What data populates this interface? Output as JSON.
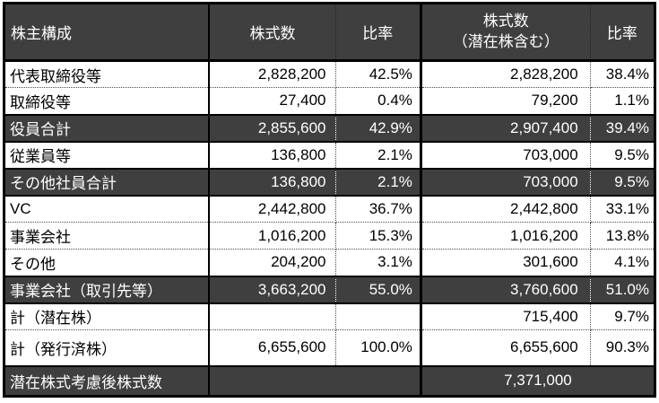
{
  "colors": {
    "emphasis_fill": "#3f3f3f",
    "emphasis_text": "#ffffff",
    "border": "#000000",
    "row_background": "#ffffff"
  },
  "header": {
    "col1": "株主構成",
    "col2": "株式数",
    "col3": "比率",
    "col4_line1": "株式数",
    "col4_line2": "（潜在株含む）",
    "col5": "比率"
  },
  "chart_data": {
    "type": "table",
    "title": "株主構成",
    "columns": [
      "株主構成",
      "株式数",
      "比率",
      "株式数（潜在株含む）",
      "比率"
    ],
    "rows": [
      {
        "label": "代表取締役等",
        "shares": "2,828,200",
        "ratio": "42.5%",
        "shares_incl_potential": "2,828,200",
        "ratio_incl_potential": "38.4%",
        "emphasis": false,
        "merged": false
      },
      {
        "label": "取締役等",
        "shares": "27,400",
        "ratio": "0.4%",
        "shares_incl_potential": "79,200",
        "ratio_incl_potential": "1.1%",
        "emphasis": false,
        "merged": false
      },
      {
        "label": "役員合計",
        "shares": "2,855,600",
        "ratio": "42.9%",
        "shares_incl_potential": "2,907,400",
        "ratio_incl_potential": "39.4%",
        "emphasis": true,
        "merged": false
      },
      {
        "label": "従業員等",
        "shares": "136,800",
        "ratio": "2.1%",
        "shares_incl_potential": "703,000",
        "ratio_incl_potential": "9.5%",
        "emphasis": false,
        "merged": false
      },
      {
        "label": "その他社員合計",
        "shares": "136,800",
        "ratio": "2.1%",
        "shares_incl_potential": "703,000",
        "ratio_incl_potential": "9.5%",
        "emphasis": true,
        "merged": false
      },
      {
        "label": "VC",
        "shares": "2,442,800",
        "ratio": "36.7%",
        "shares_incl_potential": "2,442,800",
        "ratio_incl_potential": "33.1%",
        "emphasis": false,
        "merged": false
      },
      {
        "label": "事業会社",
        "shares": "1,016,200",
        "ratio": "15.3%",
        "shares_incl_potential": "1,016,200",
        "ratio_incl_potential": "13.8%",
        "emphasis": false,
        "merged": false
      },
      {
        "label": "その他",
        "shares": "204,200",
        "ratio": "3.1%",
        "shares_incl_potential": "301,600",
        "ratio_incl_potential": "4.1%",
        "emphasis": false,
        "merged": false
      },
      {
        "label": "事業会社（取引先等）",
        "shares": "3,663,200",
        "ratio": "55.0%",
        "shares_incl_potential": "3,760,600",
        "ratio_incl_potential": "51.0%",
        "emphasis": true,
        "merged": false
      },
      {
        "label": "計（潜在株）",
        "shares": "",
        "ratio": "",
        "shares_incl_potential": "715,400",
        "ratio_incl_potential": "9.7%",
        "emphasis": false,
        "merged": false
      },
      {
        "label": "計（発行済株）",
        "shares": "6,655,600",
        "ratio": "100.0%",
        "shares_incl_potential": "6,655,600",
        "ratio_incl_potential": "90.3%",
        "emphasis": false,
        "merged": false
      },
      {
        "label": "潜在株式考慮後株式数",
        "shares": "",
        "ratio": "",
        "shares_incl_potential": "7,371,000",
        "ratio_incl_potential": "",
        "emphasis": true,
        "merged": true
      }
    ]
  }
}
